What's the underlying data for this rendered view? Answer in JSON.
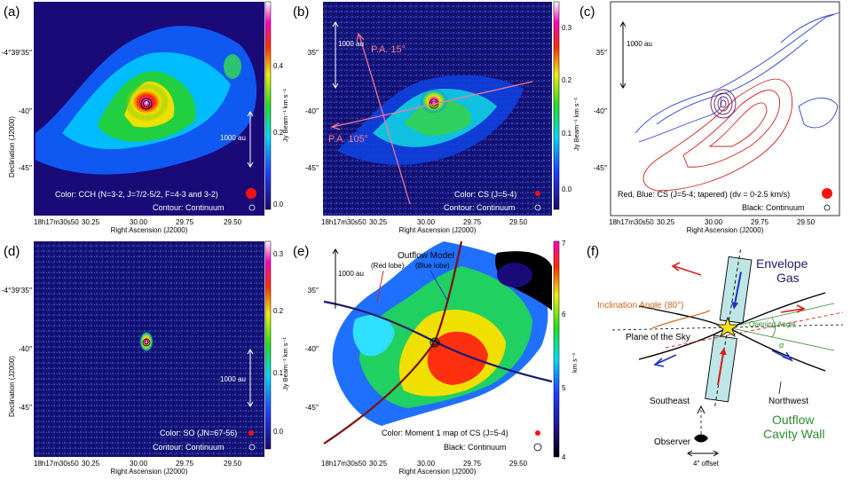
{
  "panels": {
    "a": {
      "letter": "(a)",
      "ylabel": "Declination (J2000)",
      "yticks": [
        "-4°39′35″",
        "-40″",
        "-45″"
      ],
      "colorbar_label": "Jy Beam⁻¹ km s⁻¹",
      "colorbar_ticks": [
        "0.4",
        "0.2",
        "0.0"
      ],
      "scale_label": "1000 au",
      "legend_color": "Color: CCH (N=3-2, J=7/2-5/2, F=4-3 and 3-2)",
      "legend_contour": "Contour: Continuum"
    },
    "b": {
      "letter": "(b)",
      "yticks": [
        "35″",
        "-40″",
        "-45″"
      ],
      "colorbar_label": "Jy Beam⁻¹ km s⁻¹",
      "colorbar_ticks": [
        "0.3",
        "0.2",
        "0.1",
        "0.0"
      ],
      "scale_label": "1000 au",
      "pa1": "P.A. 15°",
      "pa2": "P.A. 105°",
      "legend_color": "Color: CS (J=5-4)",
      "legend_contour": "Contour: Continuum"
    },
    "c": {
      "letter": "(c)",
      "yticks": [
        "35″",
        "-40″",
        "-45″"
      ],
      "scale_label": "1000 au",
      "legend_color": "Red, Blue: CS (J=5-4; tapered) (dv = 0-2.5 km/s)",
      "legend_contour": "Black: Continuum"
    },
    "d": {
      "letter": "(d)",
      "ylabel": "Declination (J2000)",
      "yticks": [
        "-4°39′35″",
        "-40″",
        "-45″"
      ],
      "colorbar_label": "Jy Beam⁻¹ km s⁻¹",
      "colorbar_ticks": [
        "0.3",
        "0.2",
        "0.1",
        "0.0"
      ],
      "scale_label": "1000 au",
      "legend_color": "Color: SO (JN=67-56)",
      "legend_contour": "Contour: Continuum"
    },
    "e": {
      "letter": "(e)",
      "yticks": [
        "35″",
        "-40″",
        "-45″"
      ],
      "colorbar_label": "km s⁻¹",
      "colorbar_ticks": [
        "7",
        "6",
        "5",
        "4"
      ],
      "scale_label": "1000 au",
      "outflow_title": "Outflow Model",
      "red_lobe": "(Red lobe)",
      "blue_lobe": "(Blue lobe)",
      "legend_color": "Color: Moment 1 map of CS (J=5-4)",
      "legend_contour": "Black: Continuum"
    },
    "f": {
      "letter": "(f)",
      "envelope": "Envelope",
      "gas": "Gas",
      "inclination": "Inclination Angle (80°)",
      "opening": "Opening Angle",
      "alpha": "α",
      "plane": "Plane of the Sky",
      "southeast": "Southeast",
      "northwest": "Northwest",
      "outflow": "Outflow",
      "cavity": "Cavity Wall",
      "observer": "Observer",
      "offset": "4″ offset"
    }
  },
  "xaxis": {
    "ticks": [
      "18h17m30s50",
      "30.25",
      "30.00",
      "29.75",
      "29.50"
    ],
    "label": "Right Ascension (J2000)"
  },
  "colors": {
    "red": "#d42020",
    "blue": "#2030c8",
    "dark_red": "#7a1010",
    "navy": "#1a1a6e",
    "orange": "#c8641e",
    "green": "#2c8c2c",
    "cyan_box": "#bfe6e6"
  }
}
